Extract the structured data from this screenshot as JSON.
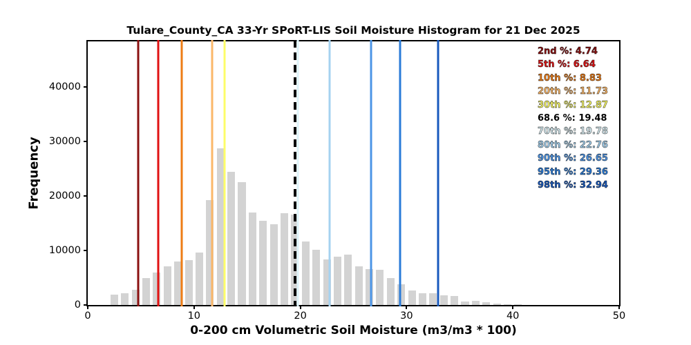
{
  "chart_data": {
    "type": "bar",
    "subtype": "histogram",
    "title": "Tulare_County_CA 33-Yr SPoRT-LIS Soil Moisture Histogram for 21 Dec 2025",
    "xlabel": "0-200 cm Volumetric Soil Moisture (m3/m3 * 100)",
    "ylabel": "Frequency",
    "xlim": [
      0,
      50
    ],
    "ylim": [
      0,
      48400
    ],
    "xticks": [
      0,
      10,
      20,
      30,
      40,
      50
    ],
    "yticks": [
      0,
      10000,
      20000,
      30000,
      40000
    ],
    "grid": false,
    "bar_color": "#d3d3d3",
    "bins": {
      "start": 2,
      "width": 1,
      "rwidth": 0.72,
      "counts": [
        1900,
        2200,
        2800,
        4900,
        6000,
        7100,
        8000,
        8300,
        9600,
        19200,
        28800,
        24400,
        22500,
        17000,
        15500,
        14800,
        16900,
        16600,
        11600,
        10100,
        8400,
        8900,
        9300,
        7100,
        6600,
        6500,
        5000,
        3800,
        2600,
        2100,
        2200,
        1800,
        1600,
        650,
        750,
        450,
        300,
        170,
        100
      ]
    },
    "percentiles": [
      {
        "label": "2nd %",
        "value": 4.74,
        "color": "#8b1111",
        "dashed": false
      },
      {
        "label": "5th %",
        "value": 6.64,
        "color": "#e01112",
        "dashed": false
      },
      {
        "label": "10th %",
        "value": 8.83,
        "color": "#ee7c15",
        "dashed": false
      },
      {
        "label": "20th %",
        "value": 11.73,
        "color": "#fbb768",
        "dashed": false
      },
      {
        "label": "30th %",
        "value": 12.87,
        "color": "#fdfd68",
        "dashed": false
      },
      {
        "label": "68.6 %",
        "value": 19.48,
        "color": "#000000",
        "dashed": true
      },
      {
        "label": "70th %",
        "value": 19.78,
        "color": "#dcf2f8",
        "dashed": false
      },
      {
        "label": "80th %",
        "value": 22.76,
        "color": "#a5d2f0",
        "dashed": false
      },
      {
        "label": "90th %",
        "value": 26.65,
        "color": "#4b94e6",
        "dashed": false
      },
      {
        "label": "95th %",
        "value": 29.36,
        "color": "#2a7bd8",
        "dashed": false
      },
      {
        "label": "98th %",
        "value": 32.94,
        "color": "#1859bd",
        "dashed": false
      }
    ],
    "legend_position": "upper right"
  }
}
